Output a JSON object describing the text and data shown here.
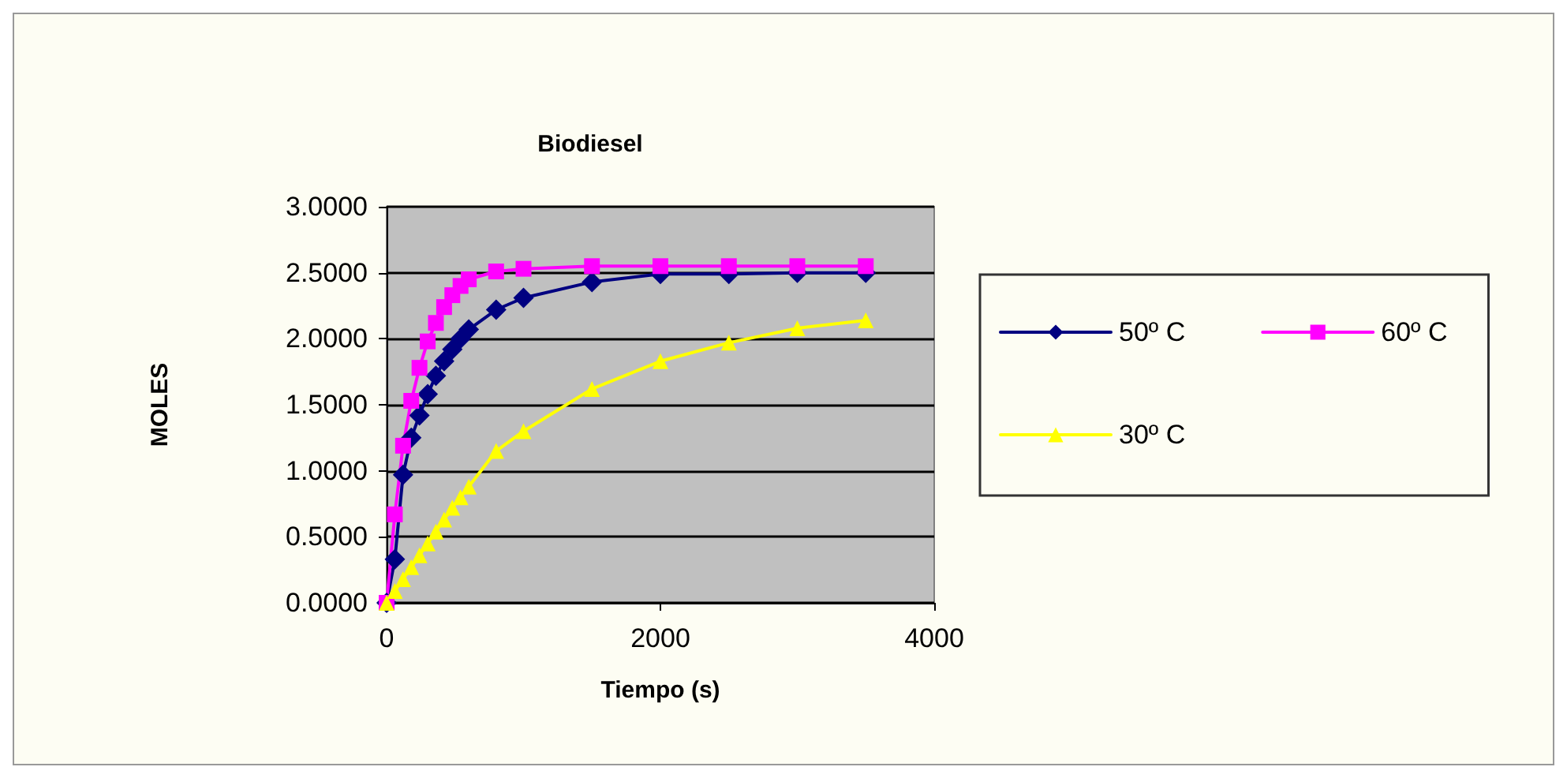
{
  "chart_data": {
    "type": "line",
    "title": "Biodiesel",
    "xlabel": "Tiempo (s)",
    "ylabel": "MOLES",
    "xlim": [
      0,
      4000
    ],
    "xticks": [
      0,
      2000,
      4000
    ],
    "ylim": [
      0,
      3
    ],
    "yticks": [
      {
        "value": 0,
        "label": "0.0000"
      },
      {
        "value": 0.5,
        "label": "0.5000"
      },
      {
        "value": 1,
        "label": "1.0000"
      },
      {
        "value": 1.5,
        "label": "1.5000"
      },
      {
        "value": 2,
        "label": "2.0000"
      },
      {
        "value": 2.5,
        "label": "2.5000"
      },
      {
        "value": 3,
        "label": "3.0000"
      }
    ],
    "grid": "y",
    "legend": "right",
    "line_style": "solid",
    "x": [
      0,
      60,
      120,
      180,
      240,
      300,
      360,
      420,
      480,
      540,
      600,
      800,
      1000,
      1500,
      2000,
      2500,
      3000,
      3500
    ],
    "series": [
      {
        "name": "50º C",
        "color": "#000080",
        "marker": "diamond",
        "values": [
          0,
          0.33,
          0.97,
          1.25,
          1.42,
          1.58,
          1.72,
          1.83,
          1.92,
          2.0,
          2.07,
          2.22,
          2.31,
          2.43,
          2.49,
          2.49,
          2.5,
          2.5
        ]
      },
      {
        "name": "60º C",
        "color": "#ff00ff",
        "marker": "square",
        "values": [
          0,
          0.67,
          1.19,
          1.53,
          1.78,
          1.98,
          2.12,
          2.24,
          2.33,
          2.4,
          2.45,
          2.51,
          2.53,
          2.55,
          2.55,
          2.55,
          2.55,
          2.55
        ]
      },
      {
        "name": "30º C",
        "color": "#ffff00",
        "marker": "triangle",
        "values": [
          0,
          0.09,
          0.18,
          0.27,
          0.36,
          0.45,
          0.54,
          0.63,
          0.72,
          0.8,
          0.88,
          1.15,
          1.3,
          1.62,
          1.83,
          1.97,
          2.08,
          2.14
        ]
      }
    ]
  }
}
